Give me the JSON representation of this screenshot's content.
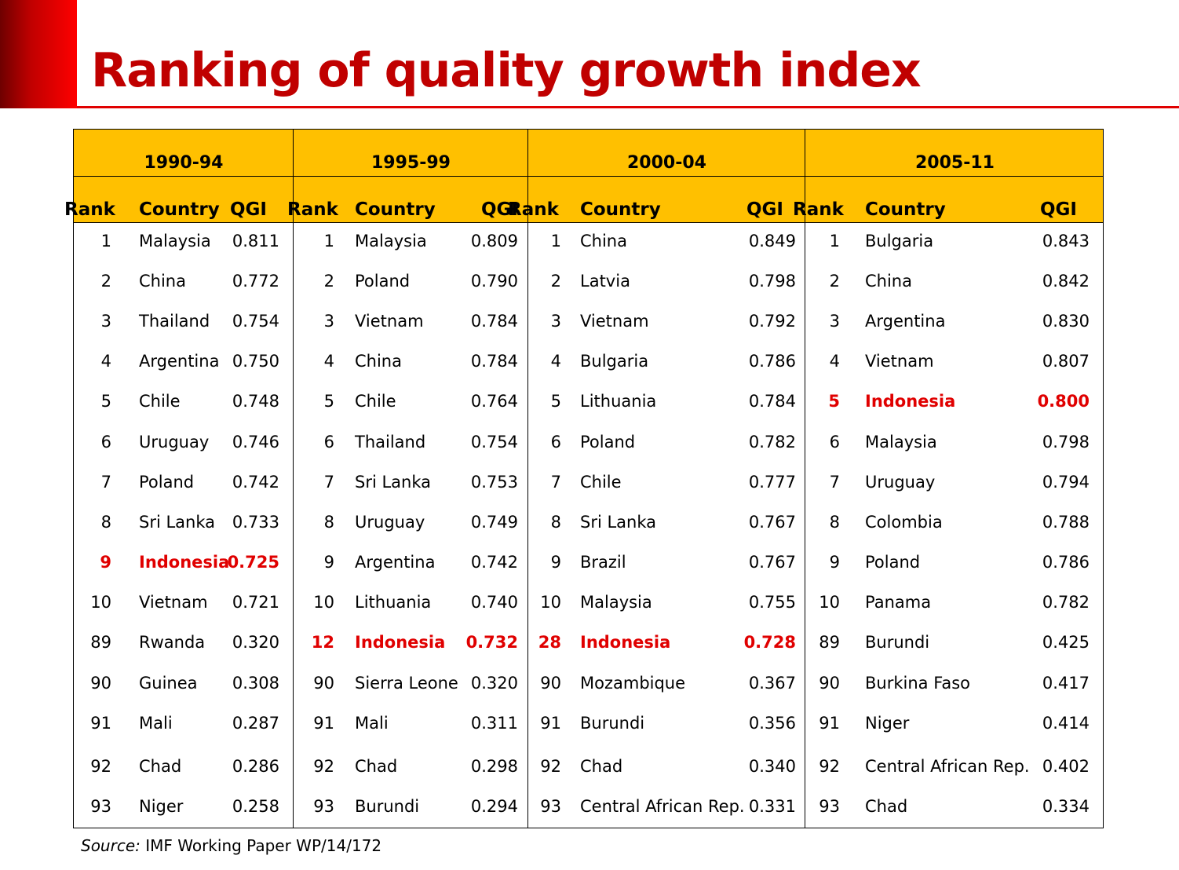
{
  "title": "Ranking of quality growth index",
  "source": {
    "label": "Source:",
    "text": " IMF Working Paper WP/14/172"
  },
  "colors": {
    "title": "#c00000",
    "header_fill": "#ffc000",
    "highlight": "#e00000"
  },
  "columns": {
    "rank": "Rank",
    "country": "Country",
    "qgi": "QGI"
  },
  "highlight_country": "Indonesia",
  "periods": [
    {
      "label": "1990-94",
      "rows": [
        {
          "rank": "1",
          "country": "Malaysia",
          "qgi": "0.811"
        },
        {
          "rank": "2",
          "country": "China",
          "qgi": "0.772"
        },
        {
          "rank": "3",
          "country": "Thailand",
          "qgi": "0.754"
        },
        {
          "rank": "4",
          "country": "Argentina",
          "qgi": "0.750"
        },
        {
          "rank": "5",
          "country": "Chile",
          "qgi": "0.748"
        },
        {
          "rank": "6",
          "country": "Uruguay",
          "qgi": "0.746"
        },
        {
          "rank": "7",
          "country": "Poland",
          "qgi": "0.742"
        },
        {
          "rank": "8",
          "country": "Sri Lanka",
          "qgi": "0.733"
        },
        {
          "rank": "9",
          "country": "Indonesia",
          "qgi": "0.725"
        },
        {
          "rank": "10",
          "country": "Vietnam",
          "qgi": "0.721"
        },
        {
          "rank": "89",
          "country": "Rwanda",
          "qgi": "0.320"
        },
        {
          "rank": "90",
          "country": "Guinea",
          "qgi": "0.308"
        },
        {
          "rank": "91",
          "country": "Mali",
          "qgi": "0.287"
        },
        {
          "rank": "92",
          "country": "Chad",
          "qgi": "0.286"
        },
        {
          "rank": "93",
          "country": "Niger",
          "qgi": "0.258"
        }
      ]
    },
    {
      "label": "1995-99",
      "rows": [
        {
          "rank": "1",
          "country": "Malaysia",
          "qgi": "0.809"
        },
        {
          "rank": "2",
          "country": "Poland",
          "qgi": "0.790"
        },
        {
          "rank": "3",
          "country": "Vietnam",
          "qgi": "0.784"
        },
        {
          "rank": "4",
          "country": "China",
          "qgi": "0.784"
        },
        {
          "rank": "5",
          "country": "Chile",
          "qgi": "0.764"
        },
        {
          "rank": "6",
          "country": "Thailand",
          "qgi": "0.754"
        },
        {
          "rank": "7",
          "country": "Sri Lanka",
          "qgi": "0.753"
        },
        {
          "rank": "8",
          "country": "Uruguay",
          "qgi": "0.749"
        },
        {
          "rank": "9",
          "country": "Argentina",
          "qgi": "0.742"
        },
        {
          "rank": "10",
          "country": "Lithuania",
          "qgi": "0.740"
        },
        {
          "rank": "12",
          "country": "Indonesia",
          "qgi": "0.732"
        },
        {
          "rank": "90",
          "country": "Sierra Leone",
          "qgi": "0.320"
        },
        {
          "rank": "91",
          "country": "Mali",
          "qgi": "0.311"
        },
        {
          "rank": "92",
          "country": "Chad",
          "qgi": "0.298"
        },
        {
          "rank": "93",
          "country": "Burundi",
          "qgi": "0.294"
        }
      ]
    },
    {
      "label": "2000-04",
      "rows": [
        {
          "rank": "1",
          "country": "China",
          "qgi": "0.849"
        },
        {
          "rank": "2",
          "country": "Latvia",
          "qgi": "0.798"
        },
        {
          "rank": "3",
          "country": "Vietnam",
          "qgi": "0.792"
        },
        {
          "rank": "4",
          "country": "Bulgaria",
          "qgi": "0.786"
        },
        {
          "rank": "5",
          "country": "Lithuania",
          "qgi": "0.784"
        },
        {
          "rank": "6",
          "country": "Poland",
          "qgi": "0.782"
        },
        {
          "rank": "7",
          "country": "Chile",
          "qgi": "0.777"
        },
        {
          "rank": "8",
          "country": "Sri Lanka",
          "qgi": "0.767"
        },
        {
          "rank": "9",
          "country": "Brazil",
          "qgi": "0.767"
        },
        {
          "rank": "10",
          "country": "Malaysia",
          "qgi": "0.755"
        },
        {
          "rank": "28",
          "country": "Indonesia",
          "qgi": "0.728"
        },
        {
          "rank": "90",
          "country": "Mozambique",
          "qgi": "0.367"
        },
        {
          "rank": "91",
          "country": "Burundi",
          "qgi": "0.356"
        },
        {
          "rank": "92",
          "country": "Chad",
          "qgi": "0.340"
        },
        {
          "rank": "93",
          "country": "Central African Rep.",
          "qgi": "0.331"
        }
      ]
    },
    {
      "label": "2005-11",
      "rows": [
        {
          "rank": "1",
          "country": "Bulgaria",
          "qgi": "0.843"
        },
        {
          "rank": "2",
          "country": "China",
          "qgi": "0.842"
        },
        {
          "rank": "3",
          "country": "Argentina",
          "qgi": "0.830"
        },
        {
          "rank": "4",
          "country": "Vietnam",
          "qgi": "0.807"
        },
        {
          "rank": "5",
          "country": "Indonesia",
          "qgi": "0.800"
        },
        {
          "rank": "6",
          "country": "Malaysia",
          "qgi": "0.798"
        },
        {
          "rank": "7",
          "country": "Uruguay",
          "qgi": "0.794"
        },
        {
          "rank": "8",
          "country": "Colombia",
          "qgi": "0.788"
        },
        {
          "rank": "9",
          "country": "Poland",
          "qgi": "0.786"
        },
        {
          "rank": "10",
          "country": "Panama",
          "qgi": "0.782"
        },
        {
          "rank": "89",
          "country": "Burundi",
          "qgi": "0.425"
        },
        {
          "rank": "90",
          "country": "Burkina Faso",
          "qgi": "0.417"
        },
        {
          "rank": "91",
          "country": "Niger",
          "qgi": "0.414"
        },
        {
          "rank": "92",
          "country": "Central African Rep.",
          "qgi": "0.402"
        },
        {
          "rank": "93",
          "country": "Chad",
          "qgi": "0.334"
        }
      ]
    }
  ]
}
